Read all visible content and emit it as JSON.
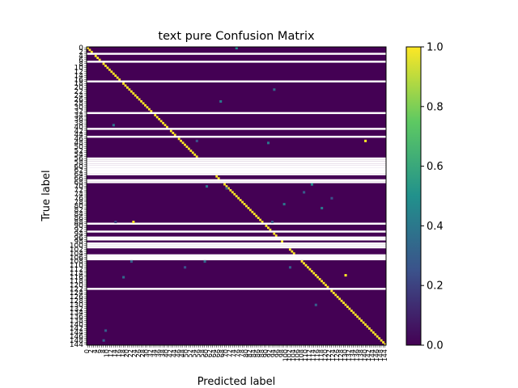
{
  "chart_data": {
    "type": "heatmap",
    "title": "text pure Confusion Matrix",
    "xlabel": "Predicted label",
    "ylabel": "True label",
    "n_classes": 151,
    "first_class_label": "0",
    "last_class_label": "144",
    "colormap": "viridis",
    "color_range": [
      0.0,
      1.0
    ],
    "colorbar_ticks": [
      "0.0",
      "0.2",
      "0.4",
      "0.6",
      "0.8",
      "1.0"
    ],
    "diagonal_value": 1.0,
    "empty_rows": [
      3,
      7,
      17,
      33,
      41,
      45,
      56,
      57,
      58,
      59,
      60,
      61,
      62,
      63,
      64,
      67,
      68,
      89,
      93,
      96,
      97,
      99,
      100,
      101,
      105,
      106,
      107,
      122
    ],
    "off_diagonal_cells": [
      {
        "row": 0,
        "col": 75,
        "value": 0.5
      },
      {
        "row": 21,
        "col": 94,
        "value": 0.35
      },
      {
        "row": 27,
        "col": 67,
        "value": 0.4
      },
      {
        "row": 39,
        "col": 13,
        "value": 0.4
      },
      {
        "row": 47,
        "col": 55,
        "value": 0.25
      },
      {
        "row": 47,
        "col": 140,
        "value": 1.0
      },
      {
        "row": 48,
        "col": 91,
        "value": 0.4
      },
      {
        "row": 69,
        "col": 113,
        "value": 0.5
      },
      {
        "row": 70,
        "col": 60,
        "value": 0.4
      },
      {
        "row": 71,
        "col": 70,
        "value": 0.3
      },
      {
        "row": 73,
        "col": 109,
        "value": 0.3
      },
      {
        "row": 76,
        "col": 123,
        "value": 0.25
      },
      {
        "row": 79,
        "col": 99,
        "value": 0.4
      },
      {
        "row": 81,
        "col": 118,
        "value": 0.4
      },
      {
        "row": 88,
        "col": 23,
        "value": 1.0
      },
      {
        "row": 88,
        "col": 14,
        "value": 0.2
      },
      {
        "row": 88,
        "col": 93,
        "value": 0.3
      },
      {
        "row": 108,
        "col": 22,
        "value": 0.3
      },
      {
        "row": 108,
        "col": 59,
        "value": 0.35
      },
      {
        "row": 111,
        "col": 49,
        "value": 0.25
      },
      {
        "row": 111,
        "col": 102,
        "value": 0.3
      },
      {
        "row": 115,
        "col": 130,
        "value": 1.0
      },
      {
        "row": 116,
        "col": 18,
        "value": 0.35
      },
      {
        "row": 130,
        "col": 115,
        "value": 0.3
      },
      {
        "row": 143,
        "col": 9,
        "value": 0.3
      },
      {
        "row": 148,
        "col": 8,
        "value": 0.3
      }
    ]
  }
}
